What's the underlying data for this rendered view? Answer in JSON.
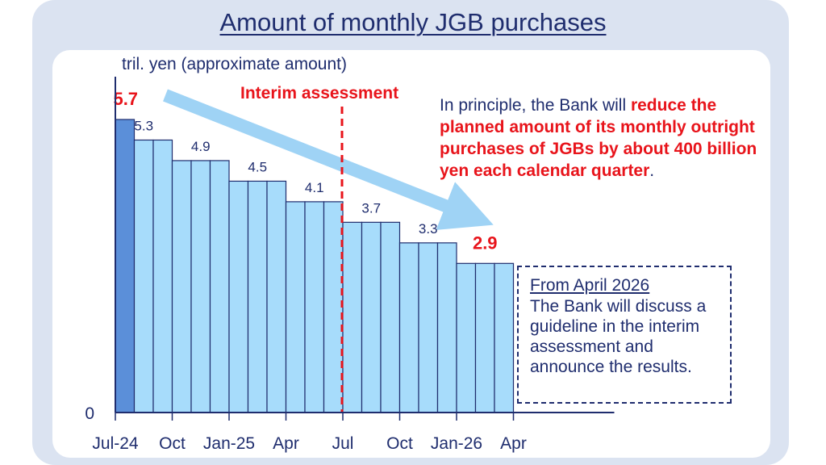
{
  "title": "Amount of monthly JGB purchases",
  "unit_label": "tril. yen (approximate amount)",
  "interim_label": "Interim assessment",
  "principle_text": {
    "prefix": "In principle, the Bank will ",
    "highlight": "reduce the planned amount of its monthly outright purchases of JGBs by about 400 billion yen each calendar quarter",
    "suffix": "."
  },
  "april_box": {
    "heading": "From April 2026",
    "body": "The Bank will discuss a guideline in the interim assessment and announce the results."
  },
  "colors": {
    "bar_first": "#5b8fd9",
    "bar": "#a7dcfb",
    "bar_edge": "#1f2d6e",
    "highlight": "#e8141b",
    "text": "#1f2d6e",
    "arrow": "#9fd3f5"
  },
  "chart_data": {
    "type": "bar",
    "months": [
      "Jul-24",
      "Aug-24",
      "Sep-24",
      "Oct-24",
      "Nov-24",
      "Dec-24",
      "Jan-25",
      "Feb-25",
      "Mar-25",
      "Apr-25",
      "May-25",
      "Jun-25",
      "Jul-25",
      "Aug-25",
      "Sep-25",
      "Oct-25",
      "Nov-25",
      "Dec-25",
      "Jan-26",
      "Feb-26",
      "Mar-26"
    ],
    "values": [
      5.7,
      5.3,
      5.3,
      4.9,
      4.9,
      4.9,
      4.5,
      4.5,
      4.5,
      4.1,
      4.1,
      4.1,
      3.7,
      3.7,
      3.7,
      3.3,
      3.3,
      3.3,
      2.9,
      2.9,
      2.9
    ],
    "data_labels": [
      {
        "index": 0,
        "text": "5.7",
        "highlight": true
      },
      {
        "index": 1,
        "text": "5.3"
      },
      {
        "index": 4,
        "text": "4.9"
      },
      {
        "index": 7,
        "text": "4.5"
      },
      {
        "index": 10,
        "text": "4.1"
      },
      {
        "index": 13,
        "text": "3.7"
      },
      {
        "index": 16,
        "text": "3.3"
      },
      {
        "index": 19,
        "text": "2.9",
        "highlight": true
      }
    ],
    "x_ticks": [
      {
        "index": 0,
        "label": "Jul-24"
      },
      {
        "index": 3,
        "label": "Oct"
      },
      {
        "index": 6,
        "label": "Jan-25"
      },
      {
        "index": 9,
        "label": "Apr"
      },
      {
        "index": 12,
        "label": "Jul"
      },
      {
        "index": 15,
        "label": "Oct"
      },
      {
        "index": 18,
        "label": "Jan-26"
      },
      {
        "index": 21,
        "label": "Apr"
      }
    ],
    "y_zero_label": "0",
    "ylim": [
      0,
      6.1
    ],
    "interim_after_month": "Jun-25",
    "grid": false
  }
}
